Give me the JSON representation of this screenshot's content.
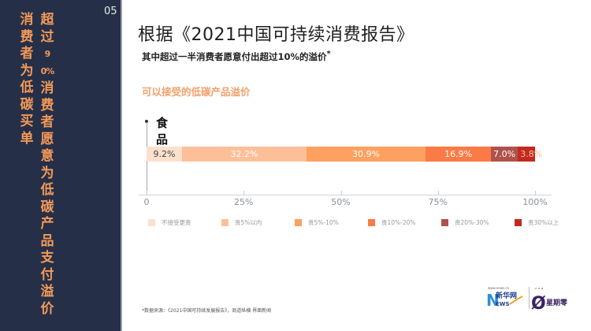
{
  "sidebar": {
    "page_number": "05",
    "headline_col1": "消费者为低碳买单",
    "headline_col2_top": "超过",
    "headline_col2_num": "90%",
    "headline_col2_rest": "消费者愿意为低碳产品支付溢价"
  },
  "header": {
    "title": "根据《2021中国可持续消费报告》",
    "subtitle": "其中超过一半消费者愿意付出超过10%的溢价",
    "subtitle_mark": "*"
  },
  "section_title": "可以接受的低碳产品溢价",
  "chart_data": {
    "type": "bar",
    "orientation": "horizontal-stacked-100",
    "title": "可以接受的低碳产品溢价",
    "categories": [
      "食品"
    ],
    "series": [
      {
        "name": "不接受更贵",
        "values": [
          9.2
        ],
        "label": "9.2%",
        "color": "#fde0cc"
      },
      {
        "name": "贵5%以内",
        "values": [
          32.2
        ],
        "label": "32.2%",
        "color": "#fdbf98"
      },
      {
        "name": "贵5%-10%",
        "values": [
          30.9
        ],
        "label": "30.9%",
        "color": "#fda060"
      },
      {
        "name": "贵10%-20%",
        "values": [
          16.9
        ],
        "label": "16.9%",
        "color": "#fb7a45"
      },
      {
        "name": "贵20%-30%",
        "values": [
          7.0
        ],
        "label": "7.0%",
        "color": "#b0524a"
      },
      {
        "name": "贵30%以上",
        "values": [
          3.8
        ],
        "label": "3.8%",
        "color": "#c4291f"
      }
    ],
    "x_ticks": [
      "0",
      "25%",
      "50%",
      "75%",
      "100%"
    ],
    "xlim": [
      0,
      100
    ],
    "legend_position": "bottom",
    "grid": false
  },
  "footer": {
    "source": "*数据来源：《2021中国可持续发展报告》，商道纵横 界面新闻"
  },
  "logos": {
    "xinhua_url_text": "www.news.cn",
    "xinhua_name": "新华网",
    "xinhua_news": "NEWS",
    "partner_name": "星期零"
  }
}
